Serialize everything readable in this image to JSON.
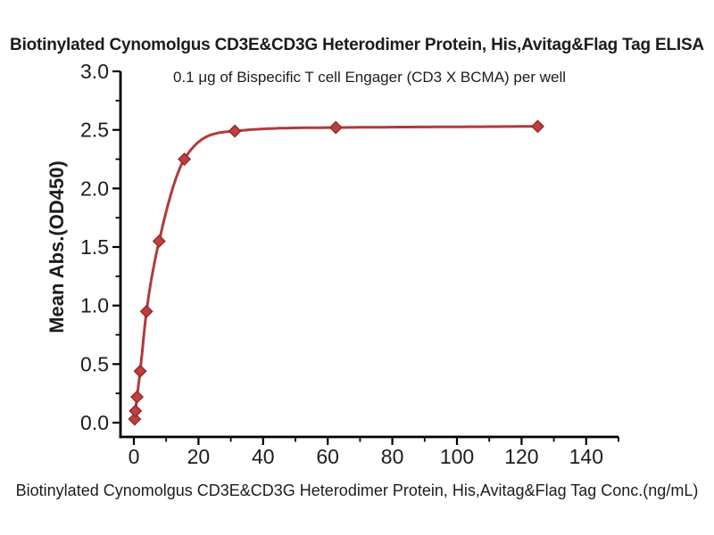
{
  "chart_data": {
    "type": "scatter",
    "title": "Biotinylated Cynomolgus CD3E&CD3G Heterodimer Protein, His,Avitag&Flag Tag ELISA",
    "subtitle": "0.1 μg of Bispecific T cell Engager (CD3 X BCMA) per well",
    "xlabel": "Biotinylated Cynomolgus CD3E&CD3G Heterodimer Protein, His,Avitag&Flag Tag Conc.(ng/mL)",
    "ylabel": "Mean Abs.(OD450)",
    "x": [
      0.24,
      0.49,
      0.98,
      1.95,
      3.91,
      7.81,
      15.63,
      31.25,
      62.5,
      125
    ],
    "y": [
      0.03,
      0.1,
      0.22,
      0.44,
      0.95,
      1.55,
      2.25,
      2.49,
      2.52,
      2.53
    ],
    "has_fit_curve": true,
    "marker": "diamond",
    "grid": false,
    "legend": "none",
    "xlim": [
      -4.1,
      150
    ],
    "ylim": [
      -0.12,
      3.0
    ],
    "x_ticks": {
      "major": [
        0,
        20,
        40,
        60,
        80,
        100,
        120,
        140
      ],
      "minor": [
        10,
        30,
        50,
        70,
        90,
        110,
        130,
        150
      ],
      "labels": [
        "0",
        "20",
        "40",
        "60",
        "80",
        "100",
        "120",
        "140"
      ]
    },
    "y_ticks": {
      "major": [
        0.0,
        0.5,
        1.0,
        1.5,
        2.0,
        2.5,
        3.0
      ],
      "minor": [
        0.25,
        0.75,
        1.25,
        1.75,
        2.25,
        2.75
      ],
      "labels": [
        "0.0",
        "0.5",
        "1.0",
        "1.5",
        "2.0",
        "2.5",
        "3.0"
      ]
    },
    "colors": {
      "curve": "#b23a3b",
      "marker_fill": "#c13e3e",
      "marker_edge": "#8f2b2b",
      "axis": "#000000",
      "text": "#1c1c1c"
    }
  }
}
